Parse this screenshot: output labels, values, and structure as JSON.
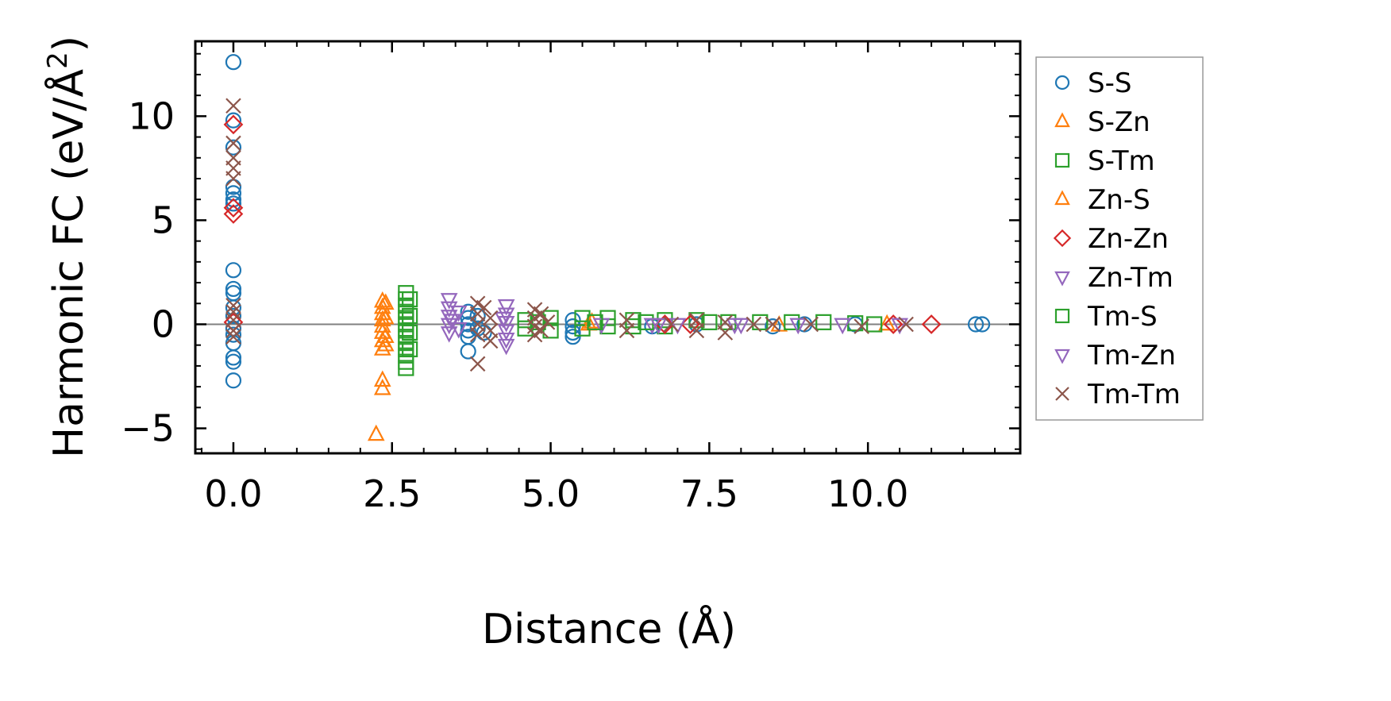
{
  "chart_data": {
    "type": "scatter",
    "xlabel": "Distance (Å)",
    "ylabel_main": "Harmonic FC (eV/Å",
    "ylabel_sup": "2",
    "ylabel_close": ")",
    "xlim": [
      -0.6,
      12.4
    ],
    "ylim": [
      -6.2,
      13.6
    ],
    "xticks": [
      0.0,
      2.5,
      5.0,
      7.5,
      10.0
    ],
    "xtick_labels": [
      "0.0",
      "2.5",
      "5.0",
      "7.5",
      "10.0"
    ],
    "yticks": [
      -5,
      0,
      5,
      10
    ],
    "ytick_labels": [
      "−5",
      "0",
      "5",
      "10"
    ],
    "zero_line": true,
    "grid": false,
    "legend_position": "outside-right",
    "series": [
      {
        "name": "S-S",
        "marker": "circle",
        "color": "#1f77b4",
        "points": [
          [
            0,
            12.6
          ],
          [
            0,
            9.8
          ],
          [
            0,
            8.5
          ],
          [
            0,
            6.6
          ],
          [
            0,
            6.3
          ],
          [
            0,
            6.0
          ],
          [
            0,
            5.8
          ],
          [
            0,
            2.6
          ],
          [
            0,
            1.7
          ],
          [
            0,
            1.5
          ],
          [
            0,
            0.8
          ],
          [
            0,
            0.4
          ],
          [
            0,
            -0.2
          ],
          [
            0,
            -0.5
          ],
          [
            0,
            -0.9
          ],
          [
            0,
            -1.6
          ],
          [
            0,
            -1.8
          ],
          [
            0,
            -2.7
          ],
          [
            3.7,
            0.6
          ],
          [
            3.7,
            0.3
          ],
          [
            3.7,
            0.0
          ],
          [
            3.7,
            -0.3
          ],
          [
            3.7,
            -0.6
          ],
          [
            3.7,
            -1.3
          ],
          [
            3.85,
            0.4
          ],
          [
            3.85,
            -0.2
          ],
          [
            3.95,
            -0.4
          ],
          [
            5.35,
            0.2
          ],
          [
            5.35,
            -0.1
          ],
          [
            5.35,
            -0.4
          ],
          [
            5.35,
            -0.6
          ],
          [
            6.6,
            -0.1
          ],
          [
            7.3,
            0.0
          ],
          [
            8.5,
            -0.1
          ],
          [
            9.0,
            0.0
          ],
          [
            9.8,
            0.0
          ],
          [
            11.7,
            0.0
          ],
          [
            11.8,
            0.0
          ]
        ]
      },
      {
        "name": "S-Zn",
        "marker": "triangle-up",
        "color": "#ff7f0e",
        "points": [
          [
            2.35,
            1.1
          ],
          [
            2.35,
            0.8
          ],
          [
            2.35,
            0.5
          ],
          [
            2.35,
            0.2
          ],
          [
            2.35,
            -0.1
          ],
          [
            2.35,
            -0.4
          ],
          [
            2.35,
            -0.8
          ],
          [
            2.35,
            -1.2
          ],
          [
            2.35,
            -2.7
          ],
          [
            2.35,
            -3.1
          ],
          [
            2.25,
            -5.3
          ],
          [
            5.6,
            0.0
          ],
          [
            8.6,
            -0.05
          ],
          [
            10.3,
            0.0
          ]
        ]
      },
      {
        "name": "S-Tm",
        "marker": "square",
        "color": "#2ca02c",
        "points": [
          [
            2.72,
            1.5
          ],
          [
            2.72,
            1.2
          ],
          [
            2.72,
            0.9
          ],
          [
            2.72,
            0.6
          ],
          [
            2.72,
            0.3
          ],
          [
            2.72,
            0.0
          ],
          [
            2.72,
            -0.3
          ],
          [
            2.72,
            -0.6
          ],
          [
            2.72,
            -0.9
          ],
          [
            2.72,
            -1.2
          ],
          [
            2.72,
            -1.5
          ],
          [
            2.72,
            -1.8
          ],
          [
            2.72,
            -2.1
          ],
          [
            4.6,
            0.2
          ],
          [
            4.6,
            -0.2
          ],
          [
            5.0,
            0.3
          ],
          [
            5.0,
            -0.3
          ],
          [
            5.5,
            0.3
          ],
          [
            5.5,
            -0.2
          ],
          [
            5.9,
            0.3
          ],
          [
            5.9,
            -0.1
          ],
          [
            6.3,
            0.2
          ],
          [
            6.3,
            -0.1
          ],
          [
            6.8,
            0.2
          ],
          [
            6.8,
            -0.1
          ],
          [
            7.3,
            0.2
          ],
          [
            7.8,
            0.1
          ],
          [
            8.3,
            0.1
          ],
          [
            8.8,
            0.1
          ],
          [
            9.3,
            0.1
          ],
          [
            9.8,
            0.05
          ],
          [
            10.1,
            0.0
          ]
        ]
      },
      {
        "name": "Zn-S",
        "marker": "triangle-up",
        "color": "#ff7f0e",
        "points": [
          [
            2.4,
            1.0
          ],
          [
            2.4,
            0.3
          ],
          [
            2.4,
            -0.6
          ],
          [
            2.4,
            -1.0
          ],
          [
            5.65,
            0.1
          ]
        ]
      },
      {
        "name": "Zn-Zn",
        "marker": "diamond",
        "color": "#d62728",
        "points": [
          [
            0,
            9.6
          ],
          [
            0,
            5.6
          ],
          [
            0,
            5.3
          ],
          [
            0,
            0.1
          ],
          [
            6.8,
            0.0
          ],
          [
            7.2,
            0.0
          ],
          [
            10.4,
            0.0
          ],
          [
            11.0,
            0.0
          ]
        ]
      },
      {
        "name": "Zn-Tm",
        "marker": "triangle-down",
        "color": "#9467bd",
        "points": [
          [
            3.4,
            1.2
          ],
          [
            3.4,
            0.8
          ],
          [
            3.4,
            0.4
          ],
          [
            3.4,
            0.0
          ],
          [
            3.4,
            -0.4
          ],
          [
            3.55,
            0.6
          ],
          [
            3.55,
            -0.2
          ],
          [
            4.3,
            0.9
          ],
          [
            4.3,
            0.5
          ],
          [
            4.3,
            0.1
          ],
          [
            4.3,
            -0.3
          ],
          [
            4.3,
            -0.7
          ],
          [
            4.3,
            -1.0
          ],
          [
            5.8,
            0.0
          ],
          [
            6.6,
            0.0
          ],
          [
            7.0,
            0.0
          ],
          [
            8.0,
            0.0
          ],
          [
            8.9,
            0.0
          ],
          [
            9.6,
            0.0
          ],
          [
            10.5,
            0.0
          ]
        ]
      },
      {
        "name": "Tm-S",
        "marker": "square",
        "color": "#2ca02c",
        "points": [
          [
            2.78,
            1.2
          ],
          [
            2.78,
            0.4
          ],
          [
            2.78,
            -0.4
          ],
          [
            2.78,
            -1.2
          ],
          [
            4.8,
            0.1
          ],
          [
            5.7,
            0.1
          ],
          [
            6.5,
            0.1
          ],
          [
            7.5,
            0.1
          ]
        ]
      },
      {
        "name": "Tm-Zn",
        "marker": "triangle-down",
        "color": "#9467bd",
        "points": [
          [
            3.45,
            0.2
          ],
          [
            4.25,
            0.3
          ],
          [
            6.7,
            0.0
          ],
          [
            7.9,
            0.0
          ]
        ]
      },
      {
        "name": "Tm-Tm",
        "marker": "x",
        "color": "#8c564b",
        "points": [
          [
            0,
            10.5
          ],
          [
            0,
            8.7
          ],
          [
            0,
            8.0
          ],
          [
            0,
            7.5
          ],
          [
            0,
            7.0
          ],
          [
            0,
            0.9
          ],
          [
            0,
            0.6
          ],
          [
            0,
            0.2
          ],
          [
            0,
            -0.3
          ],
          [
            0,
            -0.6
          ],
          [
            3.85,
            1.0
          ],
          [
            3.85,
            0.5
          ],
          [
            3.85,
            0.0
          ],
          [
            3.85,
            -0.5
          ],
          [
            3.85,
            -1.9
          ],
          [
            3.95,
            0.8
          ],
          [
            4.05,
            0.3
          ],
          [
            4.05,
            -0.3
          ],
          [
            4.05,
            -0.8
          ],
          [
            4.75,
            0.7
          ],
          [
            4.75,
            0.3
          ],
          [
            4.75,
            -0.1
          ],
          [
            4.75,
            -0.5
          ],
          [
            4.85,
            0.5
          ],
          [
            4.85,
            -0.3
          ],
          [
            4.95,
            0.1
          ],
          [
            6.2,
            0.2
          ],
          [
            6.2,
            -0.3
          ],
          [
            6.9,
            0.0
          ],
          [
            7.3,
            0.2
          ],
          [
            7.3,
            -0.3
          ],
          [
            7.75,
            0.1
          ],
          [
            7.75,
            -0.4
          ],
          [
            8.2,
            0.0
          ],
          [
            8.5,
            0.0
          ],
          [
            9.1,
            0.0
          ],
          [
            9.9,
            -0.1
          ],
          [
            10.6,
            0.0
          ]
        ]
      }
    ]
  }
}
